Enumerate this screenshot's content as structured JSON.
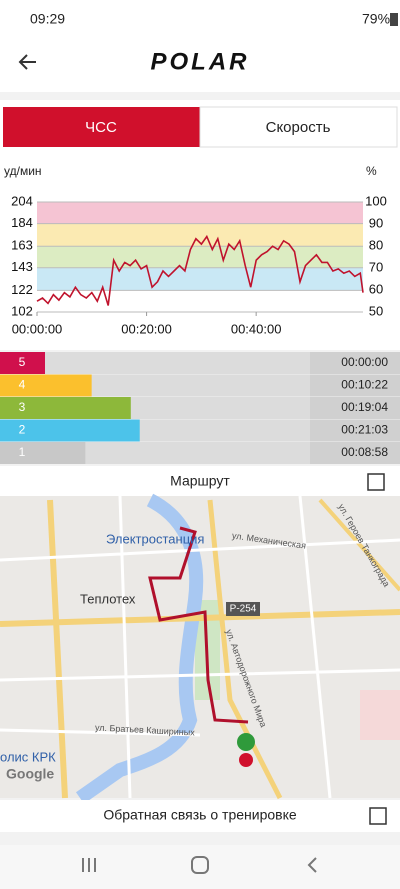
{
  "status_bar": {
    "time": "09:29",
    "battery": "79%"
  },
  "header": {
    "logo": "POLAR"
  },
  "tabs": [
    "ЧСС",
    "Скорость"
  ],
  "chart": {
    "type": "line",
    "y_label": "уд/мин",
    "y2_label": "%",
    "x": [
      0,
      1,
      2,
      3,
      4,
      5,
      6,
      7,
      8,
      9,
      10,
      11,
      12,
      13,
      14,
      15,
      16,
      17,
      18,
      19,
      20,
      21,
      22,
      23,
      24,
      25,
      26,
      27,
      28,
      29,
      30,
      31,
      32,
      33,
      34,
      35,
      36,
      37,
      38,
      39,
      40,
      41,
      42,
      43,
      44,
      45,
      46,
      47,
      48,
      49,
      50,
      51,
      52,
      53,
      54,
      55,
      56,
      57,
      58,
      59,
      59.5
    ],
    "series": [
      {
        "color": "#c0132d",
        "values": [
          112,
          115,
          110,
          118,
          113,
          120,
          116,
          125,
          118,
          115,
          120,
          112,
          125,
          108,
          150,
          140,
          148,
          145,
          150,
          142,
          145,
          125,
          130,
          140,
          135,
          140,
          145,
          140,
          160,
          170,
          165,
          172,
          160,
          170,
          150,
          165,
          160,
          168,
          145,
          125,
          150,
          155,
          158,
          163,
          160,
          168,
          165,
          158,
          130,
          145,
          150,
          155,
          148,
          148,
          140,
          142,
          138,
          140,
          135,
          138,
          120
        ]
      }
    ],
    "xlim": [
      0,
      59.5
    ],
    "xticks": [
      {
        "value": 0,
        "label": "00:00:00"
      },
      {
        "value": 20,
        "label": "00:20:00"
      },
      {
        "value": 40,
        "label": "00:40:00"
      }
    ],
    "ylim": [
      102,
      204
    ],
    "yticks": [
      204,
      184,
      163,
      143,
      122,
      102
    ],
    "y2lim": [
      50,
      100
    ],
    "y2ticks": [
      100,
      90,
      80,
      70,
      60,
      50
    ],
    "zone_bands": [
      {
        "from": 184,
        "to": 204,
        "color": "#f5c4d3"
      },
      {
        "from": 163,
        "to": 184,
        "color": "#fbeab2"
      },
      {
        "from": 143,
        "to": 163,
        "color": "#dcecc2"
      },
      {
        "from": 122,
        "to": 143,
        "color": "#c9e8f5"
      }
    ]
  },
  "zones": [
    {
      "zone": 5,
      "duration": "00:00:00",
      "color": "#d0104c"
    },
    {
      "zone": 4,
      "duration": "00:10:22",
      "color": "#fbc02d"
    },
    {
      "zone": 3,
      "duration": "00:19:04",
      "color": "#8db83a"
    },
    {
      "zone": 2,
      "duration": "00:21:03",
      "color": "#4cc3ea"
    },
    {
      "zone": 1,
      "duration": "00:08:58",
      "color": "#c8c8c8"
    }
  ],
  "route": {
    "title": "Маршрут"
  },
  "map": {
    "labels": [
      "Электростанция",
      "Теплотех",
      "Р-254",
      "ул. Механическая",
      "ул. Героев Танкограда",
      "ул. Братьев Кашириных",
      "ул. Автодорожного Мира",
      "олис КРК",
      "Google"
    ]
  },
  "feedback": "Обратная связь о тренировке"
}
